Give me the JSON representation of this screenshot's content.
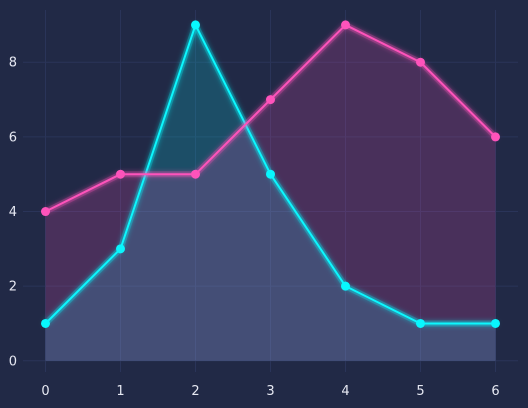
{
  "colors": {
    "background": "#212946",
    "grid": "#2A3459",
    "tick_text": "#E6E8F2"
  },
  "chart_data": {
    "type": "area",
    "x": [
      0,
      1,
      2,
      3,
      4,
      5,
      6
    ],
    "xlim": [
      -0.3,
      6.3
    ],
    "ylim": [
      -0.3,
      9.4
    ],
    "xticks": [
      0,
      1,
      2,
      3,
      4,
      5,
      6
    ],
    "yticks": [
      0,
      2,
      4,
      6,
      8
    ],
    "grid": true,
    "legend": "none",
    "series": [
      {
        "values": [
          1,
          3,
          9,
          5,
          2,
          1,
          1
        ],
        "color": "#08F7FE",
        "fill_opacity": 0.18
      },
      {
        "values": [
          4,
          5,
          5,
          7,
          9,
          8,
          6
        ],
        "color": "#FE53BB",
        "fill_opacity": 0.18
      }
    ]
  }
}
